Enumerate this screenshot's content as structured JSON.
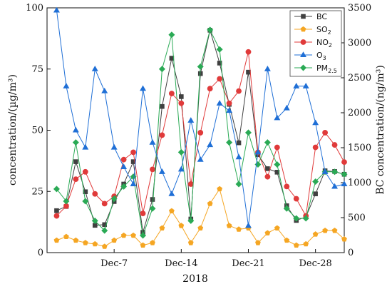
{
  "chart_data": {
    "type": "line",
    "x_tick_labels": [
      "Dec-7",
      "Dec-14",
      "Dec-21",
      "Dec-28"
    ],
    "x_tick_days": [
      7,
      14,
      21,
      28
    ],
    "xlim": [
      0,
      31
    ],
    "xlabel": "2018",
    "ylabel_left": "concentration/(µg/m³)",
    "ylabel_right": "BC concentration/(ng/m³)",
    "ylim_left": [
      0,
      100
    ],
    "ylim_right": [
      0,
      3500
    ],
    "yticks_left": [
      "0",
      "25",
      "50",
      "75",
      "100"
    ],
    "yticks_right": [
      "0",
      "500",
      "1000",
      "1500",
      "2000",
      "2500",
      "3000",
      "3500"
    ],
    "legend_position": "top-right",
    "days": [
      1,
      2,
      3,
      4,
      5,
      6,
      7,
      8,
      9,
      10,
      11,
      12,
      13,
      14,
      15,
      16,
      17,
      18,
      19,
      20,
      21,
      22,
      23,
      24,
      25,
      26,
      27,
      28,
      29,
      30,
      31
    ],
    "series": [
      {
        "name": "BC",
        "axis": "right",
        "color": "#404040",
        "marker": "square",
        "values": [
          600,
          660,
          1300,
          870,
          390,
          400,
          730,
          980,
          1300,
          290,
          760,
          2090,
          2780,
          2230,
          480,
          2560,
          3180,
          2710,
          2120,
          1570,
          2580,
          1400,
          1200,
          1150,
          670,
          460,
          510,
          840,
          1170,
          1160,
          1120
        ]
      },
      {
        "name": "SO₂",
        "axis": "left",
        "color": "#f5a623",
        "marker": "pentagon",
        "values": [
          5,
          6.5,
          5,
          4,
          3.5,
          2.5,
          5,
          7,
          7,
          3,
          4,
          10,
          17,
          11,
          4,
          10,
          20,
          26,
          11,
          9.5,
          10,
          4,
          8,
          10,
          5,
          3,
          3.5,
          7.5,
          9,
          9,
          5.5
        ]
      },
      {
        "name": "NO₂",
        "axis": "left",
        "color": "#e03a3a",
        "marker": "circle",
        "values": [
          15,
          19,
          30,
          33,
          24,
          20,
          23,
          38,
          41,
          16,
          34,
          48,
          65,
          61,
          28,
          49,
          67,
          71,
          61,
          66,
          82,
          41,
          31,
          43,
          27,
          22,
          15,
          43,
          49,
          44,
          37
        ]
      },
      {
        "name": "O₃",
        "axis": "left",
        "color": "#1f6fd6",
        "marker": "triangle",
        "values": [
          99,
          68,
          50,
          43,
          75,
          66,
          43,
          35,
          28,
          67,
          45,
          33,
          24,
          34,
          54,
          38,
          44,
          61,
          58,
          39,
          11,
          41,
          75,
          55,
          59,
          68,
          68,
          53,
          33,
          27,
          28
        ]
      },
      {
        "name": "PM₂.₅",
        "axis": "left",
        "color": "#2aaa55",
        "marker": "diamond",
        "values": [
          26,
          21,
          45,
          21,
          13,
          9,
          22,
          27,
          31,
          7,
          18,
          75,
          89,
          41,
          13,
          76,
          91,
          83,
          45,
          28,
          49,
          36,
          45,
          36,
          18,
          14,
          14,
          29,
          33,
          33,
          32
        ]
      }
    ]
  },
  "legend": {
    "bc": "BC",
    "so2_main": "SO",
    "so2_sub": "2",
    "no2_main": "NO",
    "no2_sub": "2",
    "o3_main": "O",
    "o3_sub": "3",
    "pm_main": "PM",
    "pm_sub": "2.5"
  }
}
